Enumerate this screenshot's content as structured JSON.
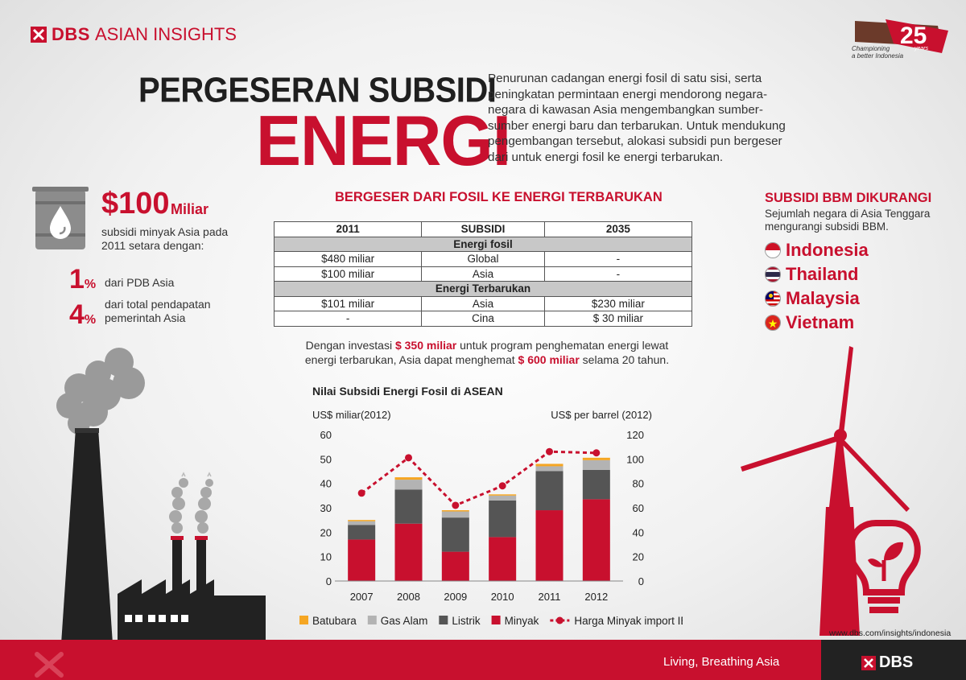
{
  "header": {
    "brand_dbs": "DBS",
    "brand_rest": "ASIAN INSIGHTS",
    "badge_years": "years",
    "badge_line1": "Championing",
    "badge_line2": "a better Indonesia"
  },
  "title": {
    "line1": "PERGESERAN SUBSIDI",
    "line2": "ENERGI"
  },
  "intro": "Penurunan cadangan energi fosil di satu sisi, serta peningkatan permintaan energi mendorong negara-negara di kawasan Asia mengembangkan sumber-sumber energi baru dan terbarukan. Untuk mendukung pengembangan tersebut, alokasi subsidi pun bergeser dari untuk energi fosil ke energi terbarukan.",
  "left": {
    "amount": "$100",
    "unit": "Miliar",
    "desc": "subsidi minyak Asia pada 2011 setara dengan:",
    "stat1_num": "1",
    "stat1_pct": "%",
    "stat1_label": "dari PDB Asia",
    "stat2_num": "4",
    "stat2_pct": "%",
    "stat2_label": "dari total pendapatan pemerintah Asia"
  },
  "table": {
    "title": "BERGESER DARI FOSIL KE ENERGI TERBARUKAN",
    "headers": [
      "2011",
      "SUBSIDI",
      "2035"
    ],
    "section1": "Energi fosil",
    "rows1": [
      [
        "$480 miliar",
        "Global",
        "-"
      ],
      [
        "$100 miliar",
        "Asia",
        "-"
      ]
    ],
    "section2": "Energi Terbarukan",
    "rows2": [
      [
        "$101 miliar",
        "Asia",
        "$230 miliar"
      ],
      [
        "-",
        "Cina",
        "$ 30 miliar"
      ]
    ]
  },
  "invest": {
    "p1": "Dengan investasi ",
    "amount1": "$ 350 miliar",
    "p2": " untuk program penghematan energi lewat energi terbarukan, Asia dapat menghemat ",
    "amount2": "$ 600 miliar",
    "p3": " selama 20 tahun."
  },
  "chart_title": "Nilai Subsidi Energi Fosil di ASEAN",
  "chart_data": {
    "type": "bar",
    "stacked": true,
    "title": "Nilai Subsidi Energi Fosil di ASEAN",
    "ylabel": "US$ miliar(2012)",
    "y2label": "US$ per barrel (2012)",
    "ylim": [
      0,
      60
    ],
    "y2lim": [
      0,
      120
    ],
    "yticks": [
      0,
      10,
      20,
      30,
      40,
      50,
      60
    ],
    "y2ticks": [
      0,
      20,
      40,
      60,
      80,
      100,
      120
    ],
    "categories": [
      "2007",
      "2008",
      "2009",
      "2010",
      "2011",
      "2012"
    ],
    "series": [
      {
        "name": "Minyak",
        "color": "#c8102e",
        "values": [
          17,
          23.5,
          12,
          18,
          29,
          33.5
        ]
      },
      {
        "name": "Listrik",
        "color": "#555555",
        "values": [
          6,
          14,
          14,
          15,
          16,
          12
        ]
      },
      {
        "name": "Gas Alam",
        "color": "#b3b3b3",
        "values": [
          1.5,
          4,
          2.5,
          2,
          2,
          4
        ]
      },
      {
        "name": "Batubara",
        "color": "#f5a623",
        "values": [
          0.5,
          1,
          0.5,
          0.5,
          1,
          1
        ]
      }
    ],
    "line": {
      "name": "Harga Minyak import IEA",
      "color": "#c8102e",
      "axis": "right",
      "values": [
        72,
        101,
        62,
        78,
        106,
        105
      ]
    },
    "legend": [
      "Batubara",
      "Gas Alam",
      "Listrik",
      "Minyak",
      "Harga Minyak import IEA"
    ],
    "legend_position": "bottom",
    "grid": false
  },
  "right": {
    "title": "SUBSIDI BBM DIKURANGI",
    "desc": "Sejumlah negara di Asia Tenggara mengurangi subsidi BBM.",
    "countries": [
      "Indonesia",
      "Thailand",
      "Malaysia",
      "Vietnam"
    ]
  },
  "url": "www.dbs.com/insights/indonesia",
  "footer": {
    "tagline": "Living, Breathing Asia",
    "logo": "DBS"
  }
}
